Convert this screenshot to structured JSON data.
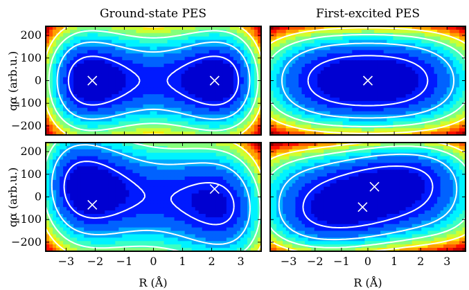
{
  "chart_data": {
    "type": "heatmap",
    "colormap": "jet",
    "contour_color": "#ffffff",
    "marker": "x",
    "marker_color": "#ffffff",
    "columns": [
      {
        "title": "Ground-state PES"
      },
      {
        "title": "First-excited PES"
      }
    ],
    "xlabel": "R (Å)",
    "ylabel": "qα (arb.u.)",
    "xlim": [
      -3.7,
      3.7
    ],
    "ylim": [
      -240,
      240
    ],
    "xticks": [
      -3,
      -2,
      -1,
      0,
      1,
      2,
      3
    ],
    "xtick_labels": [
      "−3",
      "−2",
      "−1",
      "0",
      "1",
      "2",
      "3"
    ],
    "yticks": [
      200,
      100,
      0,
      -100,
      -200
    ],
    "ytick_labels": [
      "200",
      "100",
      "0",
      "−100",
      "−200"
    ],
    "panels": [
      {
        "row": 1,
        "column": "Ground-state PES",
        "description": "symmetric double well",
        "minima": [
          {
            "x": -2.1,
            "y": 0
          },
          {
            "x": 2.1,
            "y": 0
          }
        ]
      },
      {
        "row": 1,
        "column": "First-excited PES",
        "description": "single well",
        "minima": [
          {
            "x": 0,
            "y": 0
          }
        ]
      },
      {
        "row": 2,
        "column": "Ground-state PES",
        "description": "asymmetric double well",
        "minima": [
          {
            "x": -2.1,
            "y": -35
          },
          {
            "x": 2.1,
            "y": 35
          }
        ]
      },
      {
        "row": 2,
        "column": "First-excited PES",
        "description": "distorted double well",
        "minima": [
          {
            "x": 0.25,
            "y": 45
          },
          {
            "x": -0.2,
            "y": -45
          }
        ]
      }
    ]
  }
}
